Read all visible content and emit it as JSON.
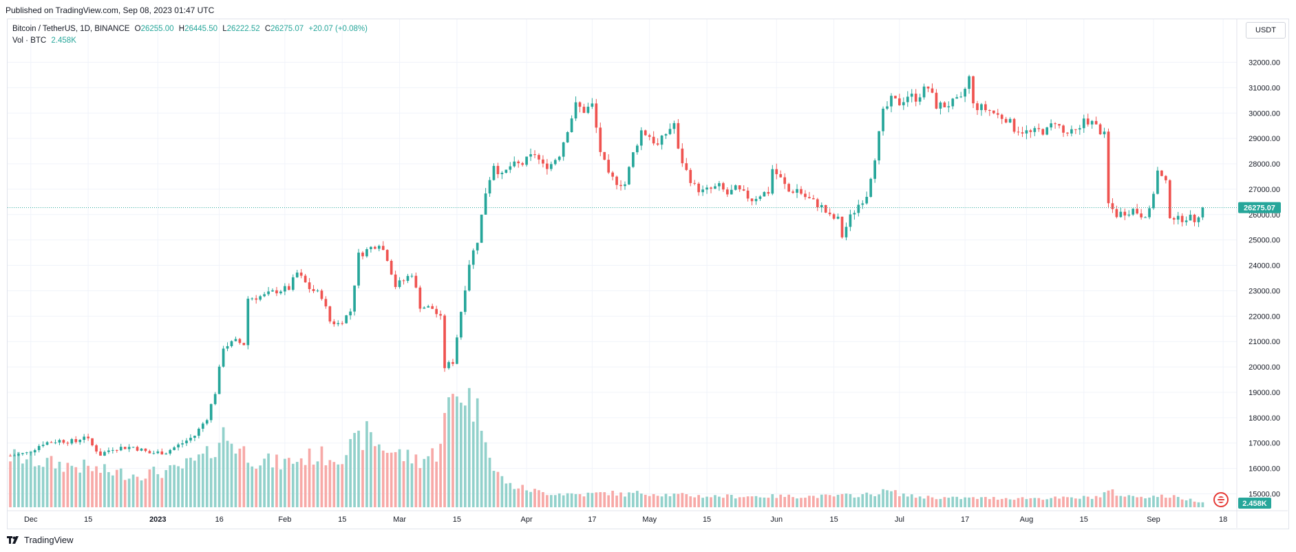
{
  "header": {
    "published": "Published on TradingView.com, Sep 08, 2023 01:47 UTC"
  },
  "legend": {
    "symbol": "Bitcoin / TetherUS, 1D, BINANCE",
    "o_label": "O",
    "o_value": "26255.00",
    "h_label": "H",
    "h_value": "26445.50",
    "l_label": "L",
    "l_value": "26222.52",
    "c_label": "C",
    "c_value": "26275.07",
    "change": "+20.07 (+0.08%)",
    "vol_label": "Vol · BTC",
    "vol_value": "2.458K"
  },
  "currency_button": "USDT",
  "footer": {
    "brand": "TradingView"
  },
  "colors": {
    "up": "#26a69a",
    "down": "#ef5350",
    "vol_up": "#92d1cb",
    "vol_down": "#f7a9a7",
    "grid": "#f0f3fa"
  },
  "chart_data": {
    "type": "candlestick",
    "ylim": [
      14700,
      32500
    ],
    "y_ticks": [
      "32000.00",
      "31000.00",
      "30000.00",
      "29000.00",
      "28000.00",
      "27000.00",
      "26000.00",
      "25000.00",
      "24000.00",
      "23000.00",
      "22000.00",
      "21000.00",
      "20000.00",
      "19000.00",
      "18000.00",
      "17000.00",
      "16000.00",
      "15000.00"
    ],
    "x_ticks": [
      {
        "label": "Dec",
        "index": 5
      },
      {
        "label": "15",
        "index": 19
      },
      {
        "label": "2023",
        "index": 36
      },
      {
        "label": "16",
        "index": 51
      },
      {
        "label": "Feb",
        "index": 67
      },
      {
        "label": "15",
        "index": 81
      },
      {
        "label": "Mar",
        "index": 95
      },
      {
        "label": "15",
        "index": 109
      },
      {
        "label": "Apr",
        "index": 126
      },
      {
        "label": "17",
        "index": 142
      },
      {
        "label": "May",
        "index": 156
      },
      {
        "label": "15",
        "index": 170
      },
      {
        "label": "Jun",
        "index": 187
      },
      {
        "label": "15",
        "index": 201
      },
      {
        "label": "Jul",
        "index": 217
      },
      {
        "label": "17",
        "index": 233
      },
      {
        "label": "Aug",
        "index": 248
      },
      {
        "label": "15",
        "index": 262
      },
      {
        "label": "Sep",
        "index": 279
      },
      {
        "label": "18",
        "index": 296
      }
    ],
    "last_price": "26275.07",
    "last_volume": "2.458K",
    "price_anchors": [
      [
        0,
        16500
      ],
      [
        4,
        16600
      ],
      [
        8,
        17000
      ],
      [
        12,
        17100
      ],
      [
        16,
        17050
      ],
      [
        18,
        17300
      ],
      [
        20,
        16900
      ],
      [
        22,
        16550
      ],
      [
        25,
        16800
      ],
      [
        30,
        16850
      ],
      [
        34,
        16600
      ],
      [
        38,
        16650
      ],
      [
        42,
        17000
      ],
      [
        45,
        17300
      ],
      [
        48,
        18000
      ],
      [
        50,
        19000
      ],
      [
        52,
        20800
      ],
      [
        55,
        21000
      ],
      [
        57,
        20900
      ],
      [
        58,
        22700
      ],
      [
        62,
        22800
      ],
      [
        65,
        23000
      ],
      [
        68,
        23100
      ],
      [
        70,
        23700
      ],
      [
        73,
        23100
      ],
      [
        76,
        22800
      ],
      [
        78,
        21800
      ],
      [
        80,
        21700
      ],
      [
        82,
        22000
      ],
      [
        83,
        22200
      ],
      [
        85,
        24400
      ],
      [
        88,
        24700
      ],
      [
        90,
        24900
      ],
      [
        92,
        24300
      ],
      [
        94,
        23200
      ],
      [
        96,
        23400
      ],
      [
        98,
        23700
      ],
      [
        100,
        22400
      ],
      [
        103,
        22300
      ],
      [
        105,
        21900
      ],
      [
        106,
        20000
      ],
      [
        108,
        20200
      ],
      [
        110,
        22200
      ],
      [
        112,
        24100
      ],
      [
        114,
        25000
      ],
      [
        116,
        26900
      ],
      [
        118,
        28000
      ],
      [
        120,
        27500
      ],
      [
        122,
        27900
      ],
      [
        125,
        28000
      ],
      [
        128,
        28400
      ],
      [
        130,
        27900
      ],
      [
        132,
        28000
      ],
      [
        134,
        28400
      ],
      [
        136,
        29400
      ],
      [
        138,
        30300
      ],
      [
        140,
        30100
      ],
      [
        142,
        30300
      ],
      [
        144,
        28500
      ],
      [
        146,
        27500
      ],
      [
        148,
        27300
      ],
      [
        150,
        27200
      ],
      [
        152,
        28400
      ],
      [
        154,
        29300
      ],
      [
        156,
        29100
      ],
      [
        158,
        28700
      ],
      [
        160,
        29200
      ],
      [
        162,
        29600
      ],
      [
        163,
        28500
      ],
      [
        165,
        27700
      ],
      [
        167,
        27100
      ],
      [
        169,
        26900
      ],
      [
        171,
        27000
      ],
      [
        173,
        27100
      ],
      [
        175,
        26800
      ],
      [
        177,
        27000
      ],
      [
        179,
        26800
      ],
      [
        181,
        26600
      ],
      [
        183,
        26800
      ],
      [
        185,
        26900
      ],
      [
        186,
        27800
      ],
      [
        188,
        27400
      ],
      [
        190,
        26900
      ],
      [
        192,
        27000
      ],
      [
        194,
        26700
      ],
      [
        196,
        26500
      ],
      [
        198,
        26300
      ],
      [
        200,
        25900
      ],
      [
        202,
        25800
      ],
      [
        203,
        25150
      ],
      [
        205,
        25900
      ],
      [
        207,
        26400
      ],
      [
        209,
        26800
      ],
      [
        211,
        28300
      ],
      [
        213,
        30000
      ],
      [
        215,
        30500
      ],
      [
        217,
        30400
      ],
      [
        219,
        30700
      ],
      [
        221,
        30600
      ],
      [
        223,
        30900
      ],
      [
        224,
        31000
      ],
      [
        226,
        30300
      ],
      [
        228,
        30300
      ],
      [
        230,
        30400
      ],
      [
        232,
        30500
      ],
      [
        234,
        31400
      ],
      [
        235,
        30300
      ],
      [
        237,
        30200
      ],
      [
        239,
        30100
      ],
      [
        241,
        29900
      ],
      [
        243,
        29800
      ],
      [
        245,
        29400
      ],
      [
        247,
        29300
      ],
      [
        249,
        29200
      ],
      [
        251,
        29300
      ],
      [
        253,
        29300
      ],
      [
        255,
        29700
      ],
      [
        257,
        29200
      ],
      [
        259,
        29200
      ],
      [
        261,
        29300
      ],
      [
        262,
        29800
      ],
      [
        264,
        29600
      ],
      [
        266,
        29300
      ],
      [
        267,
        29100
      ],
      [
        268,
        26400
      ],
      [
        270,
        26000
      ],
      [
        272,
        26100
      ],
      [
        274,
        26200
      ],
      [
        276,
        26000
      ],
      [
        278,
        26100
      ],
      [
        280,
        27700
      ],
      [
        282,
        27200
      ],
      [
        283,
        26000
      ],
      [
        285,
        25800
      ],
      [
        287,
        25900
      ],
      [
        289,
        25800
      ],
      [
        291,
        26275
      ]
    ],
    "volume_anchors": [
      [
        0,
        14
      ],
      [
        10,
        12
      ],
      [
        18,
        11
      ],
      [
        22,
        10
      ],
      [
        30,
        9
      ],
      [
        40,
        10
      ],
      [
        48,
        14
      ],
      [
        52,
        20
      ],
      [
        56,
        16
      ],
      [
        60,
        13
      ],
      [
        66,
        12
      ],
      [
        70,
        13
      ],
      [
        74,
        14
      ],
      [
        80,
        14
      ],
      [
        84,
        17
      ],
      [
        87,
        20
      ],
      [
        90,
        17
      ],
      [
        96,
        14
      ],
      [
        100,
        13
      ],
      [
        104,
        15
      ],
      [
        106,
        24
      ],
      [
        108,
        30
      ],
      [
        110,
        32
      ],
      [
        112,
        30
      ],
      [
        114,
        26
      ],
      [
        116,
        22
      ],
      [
        118,
        10
      ],
      [
        122,
        6
      ],
      [
        130,
        4
      ],
      [
        140,
        3.5
      ],
      [
        146,
        4
      ],
      [
        150,
        3.5
      ],
      [
        154,
        4
      ],
      [
        160,
        3.5
      ],
      [
        170,
        3
      ],
      [
        180,
        3
      ],
      [
        190,
        3
      ],
      [
        200,
        3
      ],
      [
        210,
        3.5
      ],
      [
        214,
        4.5
      ],
      [
        220,
        3
      ],
      [
        230,
        2.5
      ],
      [
        240,
        2.5
      ],
      [
        250,
        2.5
      ],
      [
        260,
        2.5
      ],
      [
        266,
        3
      ],
      [
        268,
        4.5
      ],
      [
        272,
        3
      ],
      [
        280,
        3
      ],
      [
        283,
        3
      ],
      [
        291,
        1.5
      ]
    ],
    "volume_max": 33
  }
}
